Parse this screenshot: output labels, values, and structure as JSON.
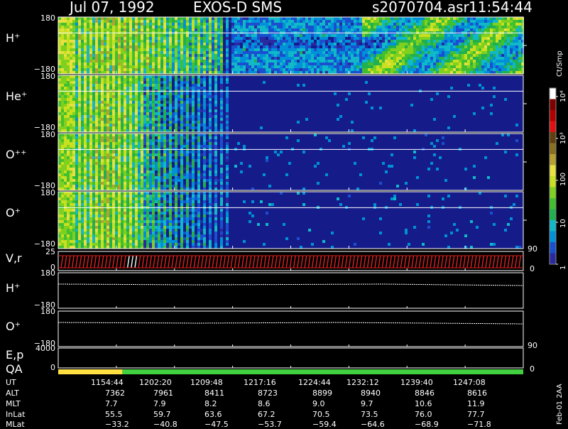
{
  "header": {
    "date": "Jul 07, 1992",
    "instrument": "EXOS-D SMS",
    "file": "s2070704.asr",
    "time": "11:54:44"
  },
  "colorbar": {
    "label": "Ct/Smp",
    "ticks": [
      {
        "label": "10⁴",
        "value": 10000
      },
      {
        "label": "10³",
        "value": 1000
      },
      {
        "label": "100",
        "value": 100
      },
      {
        "label": "10",
        "value": 10
      },
      {
        "label": "1",
        "value": 1
      }
    ],
    "colors": [
      "#2a2aa0",
      "#1a4fd0",
      "#0090d8",
      "#10b8c8",
      "#20b050",
      "#40c030",
      "#80d020",
      "#c8e020",
      "#e8e040",
      "#b8a030",
      "#887020",
      "#604010",
      "#e01010",
      "#b00000",
      "#800000",
      "#ffffff"
    ]
  },
  "chart_data": {
    "type": "heatmap",
    "panels": [
      {
        "label": "H⁺",
        "ymax": "180",
        "ymin": "−180"
      },
      {
        "label": "He⁺",
        "ymax": "180",
        "ymin": "−180"
      },
      {
        "label": "O⁺⁺",
        "ymax": "180",
        "ymin": "−180"
      },
      {
        "label": "O⁺",
        "ymax": "180",
        "ymin": "−180"
      }
    ],
    "lower_panels": [
      {
        "label": "V,r",
        "ymax": "25",
        "ymin": "0",
        "right_max": "90",
        "right_min": "0"
      },
      {
        "label": "H⁺",
        "ymax": "180",
        "ymin": "−180"
      },
      {
        "label": "O⁺",
        "ymax": "180",
        "ymin": "−180"
      },
      {
        "label": "E,p",
        "ymax": "4000",
        "ymin": "",
        "right_max": "90",
        "right_min": ""
      },
      {
        "label": "QA",
        "ymax": "",
        "ymin": "0",
        "right_max": "",
        "right_min": "0"
      }
    ],
    "orbit_table": {
      "rows": [
        {
          "name": "UT",
          "values": [
            "1154:44",
            "1202:20",
            "1209:48",
            "1217:16",
            "1224:44",
            "1232:12",
            "1239:40",
            "1247:08"
          ]
        },
        {
          "name": "ALT",
          "values": [
            "7362",
            "7961",
            "8411",
            "8723",
            "8899",
            "8940",
            "8846",
            "8616"
          ]
        },
        {
          "name": "MLT",
          "values": [
            "7.7",
            "7.9",
            "8.2",
            "8.6",
            "9.0",
            "9.7",
            "10.6",
            "11.9"
          ]
        },
        {
          "name": "InLat",
          "values": [
            "55.5",
            "59.7",
            "63.6",
            "67.2",
            "70.5",
            "73.5",
            "76.0",
            "77.7"
          ]
        },
        {
          "name": "MLat",
          "values": [
            "−33.2",
            "−40.8",
            "−47.5",
            "−53.7",
            "−59.4",
            "−64.6",
            "−68.9",
            "−71.8"
          ]
        }
      ]
    },
    "qa_bar": [
      {
        "from_fraction": 0,
        "to_fraction": 0.138,
        "color": "#ffe040"
      },
      {
        "from_fraction": 0.138,
        "to_fraction": 1,
        "color": "#40d040"
      }
    ],
    "side_label": "Feb-01 2AA"
  }
}
